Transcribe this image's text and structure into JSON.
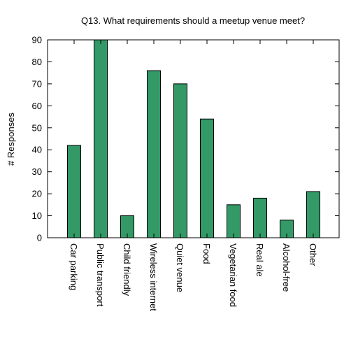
{
  "chart_data": {
    "type": "bar",
    "title": "Q13. What requirements should a meetup venue meet?",
    "xlabel": "",
    "ylabel": "# Responses",
    "ylim": [
      0,
      90
    ],
    "yticks": [
      0,
      10,
      20,
      30,
      40,
      50,
      60,
      70,
      80,
      90
    ],
    "categories": [
      "Car parking",
      "Public transport",
      "Child friendly",
      "Wireless internet",
      "Quiet venue",
      "Food",
      "Vegetarian food",
      "Real ale",
      "Alcohol-free",
      "Other"
    ],
    "values": [
      42,
      90,
      10,
      76,
      70,
      54,
      15,
      18,
      8,
      21
    ],
    "bar_color": "#339966",
    "grid": false,
    "legend": "none"
  }
}
